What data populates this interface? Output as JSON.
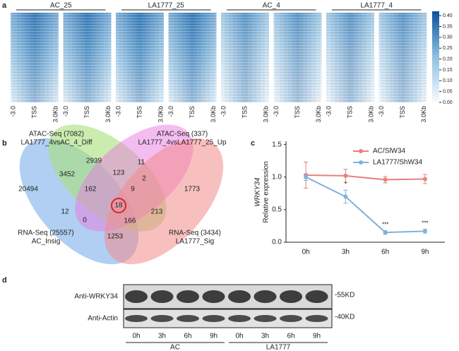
{
  "panel_a": {
    "letter": "a",
    "groups": [
      "AC_25",
      "LA1777_25",
      "AC_4",
      "LA1777_4"
    ],
    "x_tick_labels": [
      "-3.0",
      "TSS",
      "3.0Kb"
    ],
    "colorbar": {
      "lim": [
        0,
        0.42
      ],
      "ticks": [
        {
          "value": 0,
          "label": "0.00"
        },
        0.05,
        {
          "value": 0.1,
          "label": "0.10"
        },
        0.15,
        {
          "value": 0.2,
          "label": "0.20"
        },
        0.25,
        {
          "value": 0.3,
          "label": "0.30"
        },
        0.35,
        {
          "value": 0.4,
          "label": "0.40"
        }
      ]
    }
  },
  "panel_b": {
    "letter": "b",
    "sets": [
      {
        "name": "ATAC-Seq (7082)",
        "subtitle": "LA1777_4vsAC_4_Diff"
      },
      {
        "name": "ATAC-Seq (337)",
        "subtitle": "LA1777_4vsLA1777_25_Up"
      },
      {
        "name": "RNA-Seq (25557)",
        "subtitle": "AC_Insig"
      },
      {
        "name": "RNA-Seq (3434)",
        "subtitle": "LA1777_Sig"
      }
    ],
    "regions": [
      2939,
      11,
      3452,
      123,
      2,
      20494,
      162,
      9,
      1773,
      18,
      12,
      0,
      213,
      166,
      1253
    ]
  },
  "chart_data": {
    "type": "line",
    "panel_label": "c",
    "ylabel_gene": "WRKY34",
    "ylabel": "Relative expression",
    "categories": [
      "0h",
      "3h",
      "6h",
      "9h"
    ],
    "series": [
      {
        "name": "AC/SlW34",
        "color": "#e8807c",
        "values": [
          1.03,
          1.02,
          0.96,
          0.97
        ],
        "errors": [
          0.2,
          0.1,
          0.05,
          0.07
        ]
      },
      {
        "name": "LA1777/ShW34",
        "color": "#7fb2da",
        "values": [
          1.0,
          0.7,
          0.15,
          0.17
        ],
        "errors": [
          0.05,
          0.1,
          0.03,
          0.03
        ]
      }
    ],
    "ylim": [
      0,
      1.55
    ],
    "yticks": [
      {
        "value": 0,
        "label": "0.0"
      },
      0.5,
      {
        "value": 1,
        "label": "1.0"
      },
      1.5
    ],
    "annotations": [
      {
        "text": "*",
        "x": "3h"
      },
      {
        "text": "***",
        "x": "6h"
      },
      {
        "text": "***",
        "x": "9h"
      }
    ]
  },
  "panel_d": {
    "letter": "d",
    "rows": [
      {
        "name": "Anti-WRKY34",
        "size": "-55KD"
      },
      {
        "name": "Anti-Actin",
        "size": "-40KD"
      }
    ],
    "lanes": [
      "0h",
      "3h",
      "6h",
      "9h",
      "0h",
      "3h",
      "6h",
      "9h"
    ],
    "groups": [
      "AC",
      "LA1777"
    ]
  }
}
